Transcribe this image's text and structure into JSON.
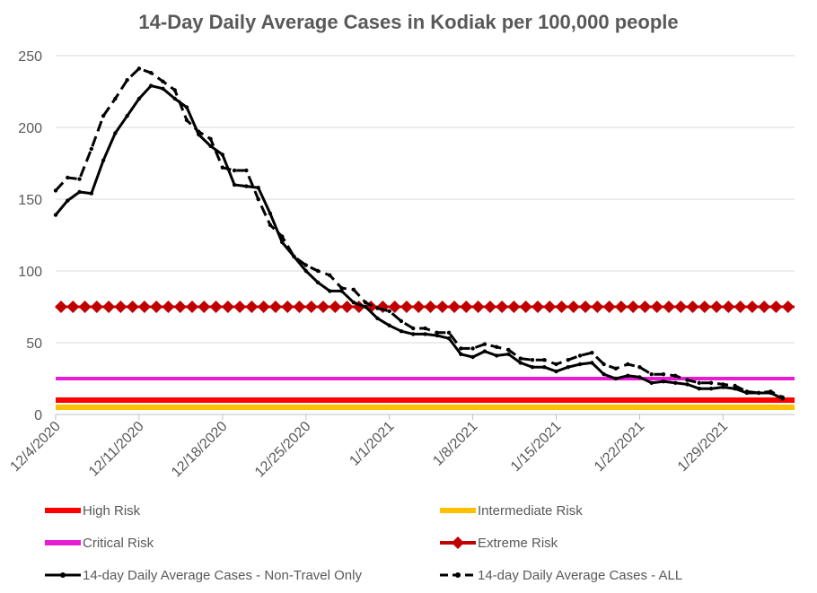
{
  "chart_data": {
    "type": "line",
    "title": "14-Day Daily Average Cases in Kodiak per 100,000 people",
    "xlabel": "",
    "ylabel": "",
    "ylim": [
      0,
      250
    ],
    "yticks": [
      0,
      50,
      100,
      150,
      200,
      250
    ],
    "x_tick_labels": [
      "12/4/2020",
      "12/11/2020",
      "12/18/2020",
      "12/25/2020",
      "1/1/2021",
      "1/8/2021",
      "1/15/2021",
      "1/22/2021",
      "1/29/2021"
    ],
    "x_start": "2020-12-04",
    "x_end": "2021-02-04",
    "grid": "horizontal",
    "legend_position": "bottom",
    "colors": {
      "high": "#ff0000",
      "intermediate": "#ffc000",
      "critical": "#e81dd3",
      "extreme": "#c00000",
      "series": "#000000"
    },
    "thresholds": [
      {
        "name": "High Risk",
        "value": 10
      },
      {
        "name": "Intermediate Risk",
        "value": 5
      },
      {
        "name": "Critical Risk",
        "value": 25
      },
      {
        "name": "Extreme Risk",
        "value": 75
      }
    ],
    "series": [
      {
        "name": "14-day Daily Average Cases - Non-Travel Only",
        "dates": [
          "2020-12-04",
          "2020-12-05",
          "2020-12-06",
          "2020-12-07",
          "2020-12-08",
          "2020-12-09",
          "2020-12-10",
          "2020-12-11",
          "2020-12-12",
          "2020-12-13",
          "2020-12-14",
          "2020-12-15",
          "2020-12-16",
          "2020-12-17",
          "2020-12-18",
          "2020-12-19",
          "2020-12-20",
          "2020-12-21",
          "2020-12-22",
          "2020-12-23",
          "2020-12-24",
          "2020-12-25",
          "2020-12-26",
          "2020-12-27",
          "2020-12-28",
          "2020-12-29",
          "2020-12-30",
          "2020-12-31",
          "2021-01-01",
          "2021-01-02",
          "2021-01-03",
          "2021-01-04",
          "2021-01-05",
          "2021-01-06",
          "2021-01-07",
          "2021-01-08",
          "2021-01-09",
          "2021-01-10",
          "2021-01-11",
          "2021-01-12",
          "2021-01-13",
          "2021-01-14",
          "2021-01-15",
          "2021-01-16",
          "2021-01-17",
          "2021-01-18",
          "2021-01-19",
          "2021-01-20",
          "2021-01-21",
          "2021-01-22",
          "2021-01-23",
          "2021-01-24",
          "2021-01-25",
          "2021-01-26",
          "2021-01-27",
          "2021-01-28",
          "2021-01-29",
          "2021-01-30",
          "2021-01-31",
          "2021-02-01",
          "2021-02-02",
          "2021-02-03"
        ],
        "values": [
          139,
          149,
          155,
          154,
          177,
          196,
          208,
          220,
          229,
          227,
          220,
          214,
          195,
          187,
          181,
          160,
          159,
          158,
          140,
          120,
          110,
          100,
          92,
          86,
          86,
          78,
          75,
          67,
          62,
          58,
          56,
          56,
          55,
          53,
          42,
          40,
          44,
          41,
          42,
          36,
          33,
          33,
          30,
          33,
          35,
          36,
          28,
          25,
          27,
          26,
          22,
          23,
          22,
          21,
          18,
          18,
          19,
          18,
          15,
          15,
          15,
          11
        ]
      },
      {
        "name": "14-day Daily Average Cases - ALL",
        "dates": [
          "2020-12-04",
          "2020-12-05",
          "2020-12-06",
          "2020-12-07",
          "2020-12-08",
          "2020-12-09",
          "2020-12-10",
          "2020-12-11",
          "2020-12-12",
          "2020-12-13",
          "2020-12-14",
          "2020-12-15",
          "2020-12-16",
          "2020-12-17",
          "2020-12-18",
          "2020-12-19",
          "2020-12-20",
          "2020-12-21",
          "2020-12-22",
          "2020-12-23",
          "2020-12-24",
          "2020-12-25",
          "2020-12-26",
          "2020-12-27",
          "2020-12-28",
          "2020-12-29",
          "2020-12-30",
          "2020-12-31",
          "2021-01-01",
          "2021-01-02",
          "2021-01-03",
          "2021-01-04",
          "2021-01-05",
          "2021-01-06",
          "2021-01-07",
          "2021-01-08",
          "2021-01-09",
          "2021-01-10",
          "2021-01-11",
          "2021-01-12",
          "2021-01-13",
          "2021-01-14",
          "2021-01-15",
          "2021-01-16",
          "2021-01-17",
          "2021-01-18",
          "2021-01-19",
          "2021-01-20",
          "2021-01-21",
          "2021-01-22",
          "2021-01-23",
          "2021-01-24",
          "2021-01-25",
          "2021-01-26",
          "2021-01-27",
          "2021-01-28",
          "2021-01-29",
          "2021-01-30",
          "2021-01-31",
          "2021-02-01",
          "2021-02-02",
          "2021-02-03"
        ],
        "values": [
          156,
          165,
          164,
          185,
          208,
          220,
          233,
          241,
          238,
          232,
          226,
          205,
          197,
          192,
          172,
          170,
          170,
          150,
          132,
          124,
          110,
          104,
          100,
          97,
          88,
          87,
          78,
          74,
          72,
          65,
          60,
          60,
          57,
          57,
          46,
          46,
          49,
          47,
          45,
          39,
          38,
          38,
          35,
          38,
          41,
          43,
          35,
          32,
          35,
          33,
          28,
          28,
          27,
          24,
          22,
          22,
          21,
          20,
          16,
          15,
          16,
          12
        ]
      }
    ]
  },
  "legend": {
    "items": [
      {
        "label": "High Risk"
      },
      {
        "label": "Intermediate Risk"
      },
      {
        "label": "Critical Risk"
      },
      {
        "label": "Extreme Risk"
      },
      {
        "label": "14-day Daily Average Cases - Non-Travel Only"
      },
      {
        "label": "14-day Daily Average Cases - ALL"
      }
    ]
  }
}
